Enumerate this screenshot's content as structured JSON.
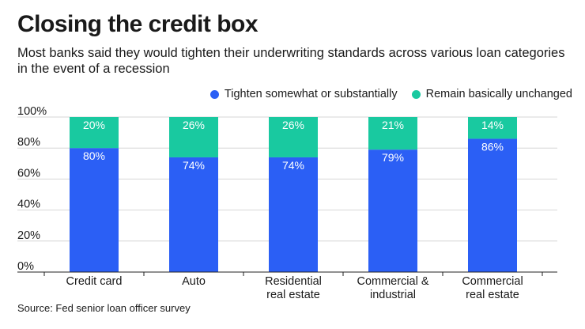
{
  "title": "Closing the credit box",
  "subtitle": "Most banks said they would tighten their underwriting standards across various loan categories in the event of a recession",
  "source": "Source: Fed senior loan officer survey",
  "colors": {
    "tighten": "#2b5ff5",
    "unchanged": "#19c9a0",
    "grid": "#d6d6d6",
    "axis": "#222222"
  },
  "chart_data": {
    "type": "bar",
    "stacked": true,
    "categories": [
      [
        "Credit card"
      ],
      [
        "Auto"
      ],
      [
        "Residential",
        "real estate"
      ],
      [
        "Commercial &",
        "industrial"
      ],
      [
        "Commercial",
        "real estate"
      ]
    ],
    "series": [
      {
        "name": "Tighten somewhat or substantially",
        "values": [
          80,
          74,
          74,
          79,
          86
        ],
        "labels": [
          "80%",
          "74%",
          "74%",
          "79%",
          "86%"
        ]
      },
      {
        "name": "Remain basically unchanged",
        "values": [
          20,
          26,
          26,
          21,
          14
        ],
        "labels": [
          "20%",
          "26%",
          "26%",
          "21%",
          "14%"
        ]
      }
    ],
    "ylim": [
      0,
      100
    ],
    "yticks": [
      "0%",
      "20%",
      "40%",
      "60%",
      "80%",
      "100%"
    ],
    "ytick_values": [
      0,
      20,
      40,
      60,
      80,
      100
    ],
    "legend_position": "top-right",
    "grid": true
  }
}
